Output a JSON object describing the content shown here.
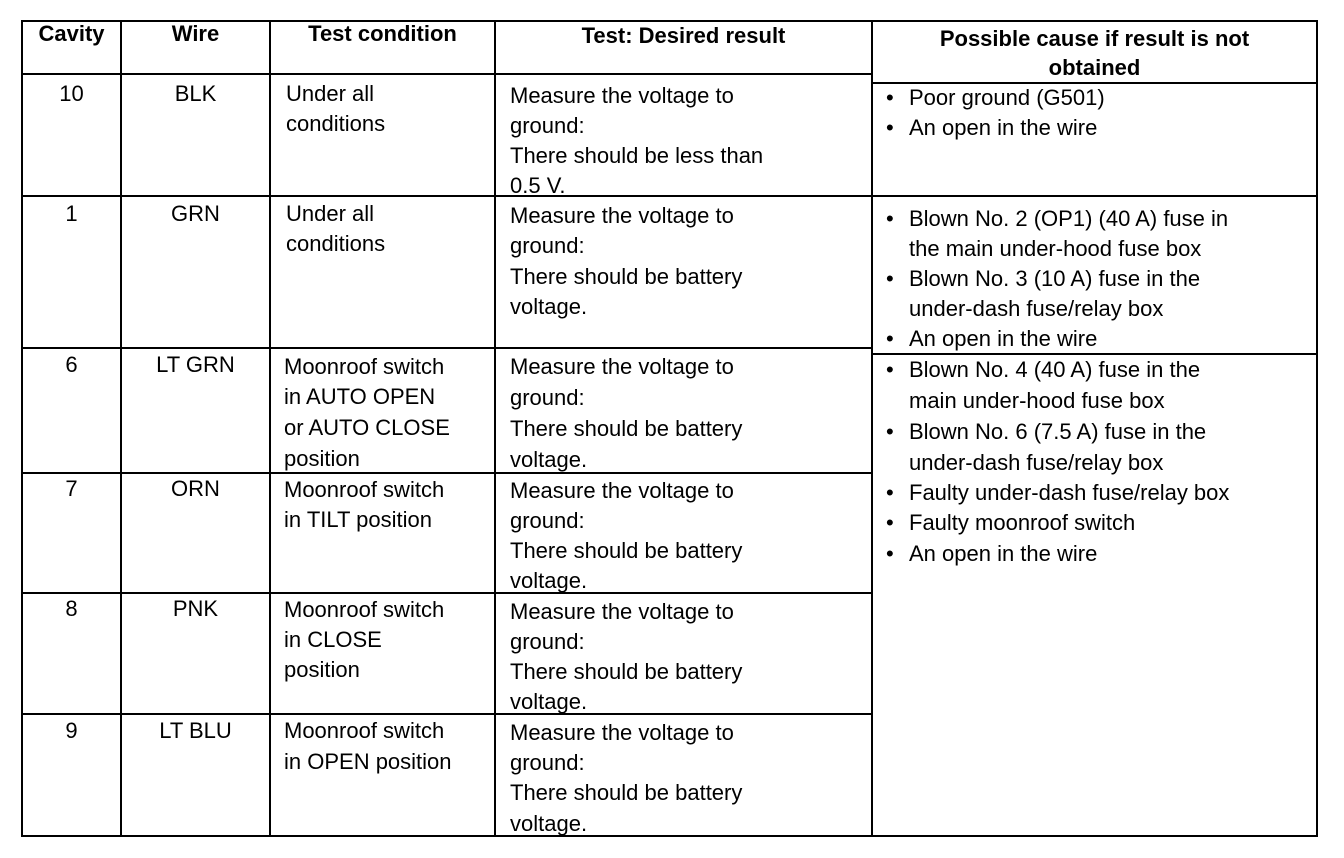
{
  "headers": {
    "cavity": "Cavity",
    "wire": "Wire",
    "test_condition": "Test condition",
    "desired_result": "Test: Desired result",
    "possible_cause": "Possible cause if result is not obtained",
    "possible_cause_l1": "Possible cause if result is not",
    "possible_cause_l2": "obtained"
  },
  "rows": [
    {
      "cavity": "10",
      "wire": "BLK",
      "condition": [
        "Under all",
        "conditions"
      ],
      "result": [
        "Measure the voltage to",
        "ground:",
        "There should be less than",
        "0.5 V."
      ]
    },
    {
      "cavity": "1",
      "wire": "GRN",
      "condition": [
        "Under all",
        "conditions"
      ],
      "result": [
        "Measure the voltage to",
        "ground:",
        "There should be battery",
        "voltage."
      ]
    },
    {
      "cavity": "6",
      "wire": "LT GRN",
      "condition": [
        "Moonroof switch",
        "in AUTO OPEN",
        "or AUTO CLOSE",
        "position"
      ],
      "result": [
        "Measure the voltage to",
        "ground:",
        "There should be battery",
        "voltage."
      ]
    },
    {
      "cavity": "7",
      "wire": "ORN",
      "condition": [
        "Moonroof switch",
        "in TILT position"
      ],
      "result": [
        "Measure the voltage to",
        "ground:",
        "There should be battery",
        "voltage."
      ]
    },
    {
      "cavity": "8",
      "wire": "PNK",
      "condition": [
        "Moonroof switch",
        "in CLOSE",
        "position"
      ],
      "result": [
        "Measure the voltage to",
        "ground:",
        "There should be battery",
        "voltage."
      ]
    },
    {
      "cavity": "9",
      "wire": "LT BLU",
      "condition": [
        "Moonroof switch",
        "in OPEN position"
      ],
      "result": [
        "Measure the voltage to",
        "ground:",
        "There should be battery",
        "voltage."
      ]
    }
  ],
  "causes": [
    {
      "group": "cavity-10",
      "bullet": "•",
      "items": [
        [
          "Poor ground (G501)"
        ],
        [
          "An open in the wire"
        ]
      ]
    },
    {
      "group": "cavity-1",
      "bullet": "•",
      "items": [
        [
          "Blown No. 2 (OP1) (40 A) fuse in",
          "the main under-hood fuse box"
        ],
        [
          "Blown No. 3 (10 A) fuse in the",
          "under-dash fuse/relay box"
        ],
        [
          "An open in the wire"
        ]
      ]
    },
    {
      "group": "cavities-6-9",
      "bullet": "•",
      "items": [
        [
          "Blown No. 4 (40 A) fuse in the",
          "main under-hood fuse box"
        ],
        [
          "Blown No. 6 (7.5 A) fuse in the",
          "under-dash fuse/relay box"
        ],
        [
          "Faulty under-dash fuse/relay box"
        ],
        [
          "Faulty moonroof switch"
        ],
        [
          "An open in the wire"
        ]
      ]
    }
  ]
}
